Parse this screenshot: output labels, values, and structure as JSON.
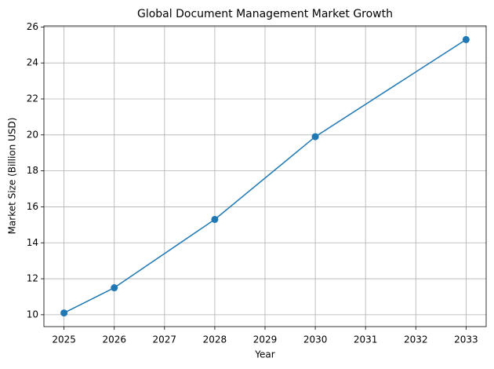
{
  "chart_data": {
    "type": "line",
    "title": "Global Document Management Market Growth",
    "x_label": "Year",
    "y_label": "Market Size (Billion USD)",
    "x": [
      2025,
      2026,
      2028,
      2030,
      2033
    ],
    "series": [
      {
        "name": "Market Size",
        "color": "#1f77b4",
        "values": [
          10.1,
          11.5,
          15.3,
          19.9,
          25.3
        ]
      }
    ],
    "xlim": [
      2024.6,
      2033.4
    ],
    "xticks": [
      2025,
      2026,
      2027,
      2028,
      2029,
      2030,
      2031,
      2032,
      2033
    ],
    "ylim": [
      9.34,
      26.06
    ],
    "yticks": [
      10,
      12,
      14,
      16,
      18,
      20,
      22,
      24,
      26
    ],
    "grid": true,
    "markers": true
  }
}
